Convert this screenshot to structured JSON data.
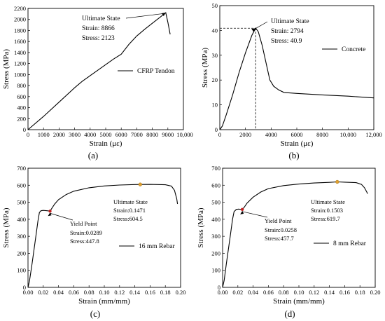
{
  "chart_data": [
    {
      "panel": "(a)",
      "type": "line",
      "xlabel": "Strain (με)",
      "ylabel": "Stress (MPa)",
      "xlim": [
        0,
        10000
      ],
      "ylim": [
        0,
        2200
      ],
      "xticks": [
        0,
        1000,
        2000,
        3000,
        4000,
        5000,
        6000,
        7000,
        8000,
        9000
      ],
      "xtick_labels": [
        "0",
        "1000",
        "2000",
        "3000",
        "4000",
        "5000",
        "6000",
        "7000",
        "8000",
        "9000"
      ],
      "xtick_extra": "10,000",
      "yticks": [
        0,
        200,
        400,
        600,
        800,
        1000,
        1200,
        1400,
        1600,
        1800,
        2000,
        2200
      ],
      "legend": "CFRP Tendon",
      "series": [
        {
          "name": "CFRP Tendon",
          "x": [
            0,
            1000,
            2000,
            3000,
            3500,
            4500,
            5500,
            6000,
            6500,
            7000,
            7500,
            8000,
            8500,
            8866,
            9000,
            9150
          ],
          "y": [
            0,
            240,
            500,
            760,
            880,
            1080,
            1280,
            1370,
            1550,
            1700,
            1820,
            1930,
            2040,
            2123,
            1950,
            1730
          ]
        }
      ],
      "annotation": {
        "title": "Ultimate State",
        "strain_label": "Strain:  8866",
        "stress_label": "Stress:  2123",
        "x": 8866,
        "y": 2123
      }
    },
    {
      "panel": "(b)",
      "type": "line",
      "xlabel": "Strain (με)",
      "ylabel": "Stress (MPa)",
      "xlim": [
        0,
        12000
      ],
      "ylim": [
        0,
        50
      ],
      "xticks": [
        0,
        2000,
        4000,
        6000,
        8000,
        10000,
        12000
      ],
      "xtick_labels": [
        "0",
        "2000",
        "4000",
        "6000",
        "8000",
        "10,000",
        "12,000"
      ],
      "yticks": [
        0,
        10,
        20,
        30,
        40,
        50
      ],
      "legend": "Concrete",
      "series": [
        {
          "name": "Concrete",
          "x": [
            0,
            200,
            500,
            1000,
            1500,
            2000,
            2500,
            2794,
            3000,
            3300,
            3600,
            3900,
            4200,
            4600,
            5000,
            6000,
            8000,
            10000,
            12000
          ],
          "y": [
            0,
            1.5,
            6,
            14,
            23,
            31,
            38,
            40.9,
            39.5,
            34,
            27,
            20,
            17.5,
            16,
            15,
            14.6,
            14,
            13.5,
            12.8
          ]
        }
      ],
      "annotation": {
        "title": "Ultimate State",
        "strain_label": "Strain:  2794",
        "stress_label": "Stress:  40.9",
        "x": 2794,
        "y": 40.9
      }
    },
    {
      "panel": "(c)",
      "type": "line",
      "xlabel": "Strain (mm/mm)",
      "ylabel": "Stress (MPa)",
      "xlim": [
        0,
        0.2
      ],
      "ylim": [
        0,
        700
      ],
      "xticks": [
        0,
        0.02,
        0.04,
        0.06,
        0.08,
        0.1,
        0.12,
        0.14,
        0.16,
        0.18,
        0.2
      ],
      "xtick_labels": [
        "0.00",
        "0.02",
        "0.04",
        "0.06",
        "0.08",
        "0.10",
        "0.12",
        "0.14",
        "0.16",
        "0.18",
        "0.20"
      ],
      "yticks": [
        0,
        100,
        200,
        300,
        400,
        500,
        600,
        700
      ],
      "legend": "16 mm Rebar",
      "series": [
        {
          "name": "16 mm Rebar",
          "x": [
            0,
            0.002,
            0.005,
            0.01,
            0.013,
            0.015,
            0.017,
            0.02,
            0.025,
            0.0289,
            0.032,
            0.035,
            0.04,
            0.05,
            0.06,
            0.08,
            0.1,
            0.12,
            0.14,
            0.1471,
            0.16,
            0.18,
            0.188,
            0.192,
            0.195,
            0.196
          ],
          "y": [
            0,
            40,
            130,
            290,
            390,
            440,
            450,
            452,
            450,
            447.8,
            470,
            490,
            515,
            545,
            565,
            585,
            596,
            601,
            604,
            604.5,
            605,
            603,
            595,
            570,
            520,
            490
          ]
        }
      ],
      "annotations": [
        {
          "title": "Ultimate State",
          "strain_label": "Strain:0.1471",
          "stress_label": "Stress:604.5",
          "x": 0.1471,
          "y": 604.5
        },
        {
          "title": "Yield Point",
          "strain_label": "Strain:0.0289",
          "stress_label": "Stress:447.8",
          "x": 0.0289,
          "y": 447.8
        }
      ]
    },
    {
      "panel": "(d)",
      "type": "line",
      "xlabel": "Strain (mm/mm)",
      "ylabel": "Stress (MPa)",
      "xlim": [
        0,
        0.2
      ],
      "ylim": [
        0,
        700
      ],
      "xticks": [
        0,
        0.02,
        0.04,
        0.06,
        0.08,
        0.1,
        0.12,
        0.14,
        0.16,
        0.18,
        0.2
      ],
      "xtick_labels": [
        "0.00",
        "0.02",
        "0.04",
        "0.06",
        "0.08",
        "0.10",
        "0.12",
        "0.14",
        "0.16",
        "0.18",
        "0.20"
      ],
      "yticks": [
        0,
        100,
        200,
        300,
        400,
        500,
        600,
        700
      ],
      "legend": "8 mm Rebar",
      "series": [
        {
          "name": "8 mm Rebar",
          "x": [
            0,
            0.002,
            0.005,
            0.01,
            0.013,
            0.015,
            0.018,
            0.021,
            0.024,
            0.0258,
            0.028,
            0.032,
            0.04,
            0.05,
            0.06,
            0.08,
            0.1,
            0.12,
            0.14,
            0.1503,
            0.16,
            0.175,
            0.182,
            0.186,
            0.189,
            0.19
          ],
          "y": [
            0,
            40,
            140,
            300,
            400,
            445,
            458,
            460,
            458,
            457.7,
            468,
            495,
            530,
            560,
            580,
            598,
            607,
            613,
            617,
            619.7,
            618,
            615,
            605,
            585,
            560,
            550
          ]
        }
      ],
      "annotations": [
        {
          "title": "Ultimate State",
          "strain_label": "Strain:0.1503",
          "stress_label": "Stress:619.7",
          "x": 0.1503,
          "y": 619.7
        },
        {
          "title": "Yield Point",
          "strain_label": "Strain:0.0258",
          "stress_label": "Stress:457.7",
          "x": 0.0258,
          "y": 457.7
        }
      ]
    }
  ]
}
